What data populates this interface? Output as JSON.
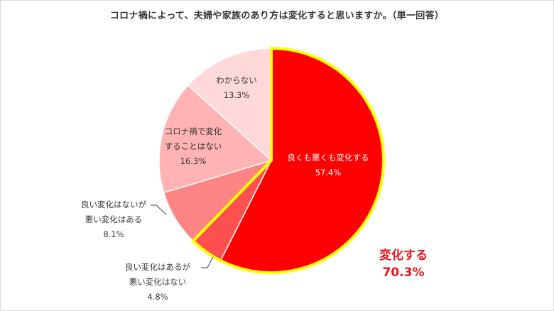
{
  "chart_data": {
    "type": "pie",
    "title": "コロナ禍によって、夫婦や家族のあり方は変化すると思いますか。（単一回答）",
    "slices": [
      {
        "label_lines": [
          "良くも悪くも変化する"
        ],
        "value": 57.4,
        "value_text": "57.4%",
        "color": "#ff0000"
      },
      {
        "label_lines": [
          "良い変化はあるが",
          "悪い変化はない"
        ],
        "value": 4.8,
        "value_text": "4.8%",
        "color": "#ff5050"
      },
      {
        "label_lines": [
          "良い変化はないが",
          "悪い変化はある"
        ],
        "value": 8.1,
        "value_text": "8.1%",
        "color": "#ff8585"
      },
      {
        "label_lines": [
          "コロナ禍で変化",
          "することはない"
        ],
        "value": 16.3,
        "value_text": "16.3%",
        "color": "#ffb3b3"
      },
      {
        "label_lines": [
          "わからない"
        ],
        "value": 13.3,
        "value_text": "13.3%",
        "color": "#ffd9d9"
      }
    ],
    "highlight": {
      "label": "変化する",
      "value_text": "70.3%",
      "border_color": "#ffff00",
      "text_color": "#e8141c"
    }
  }
}
